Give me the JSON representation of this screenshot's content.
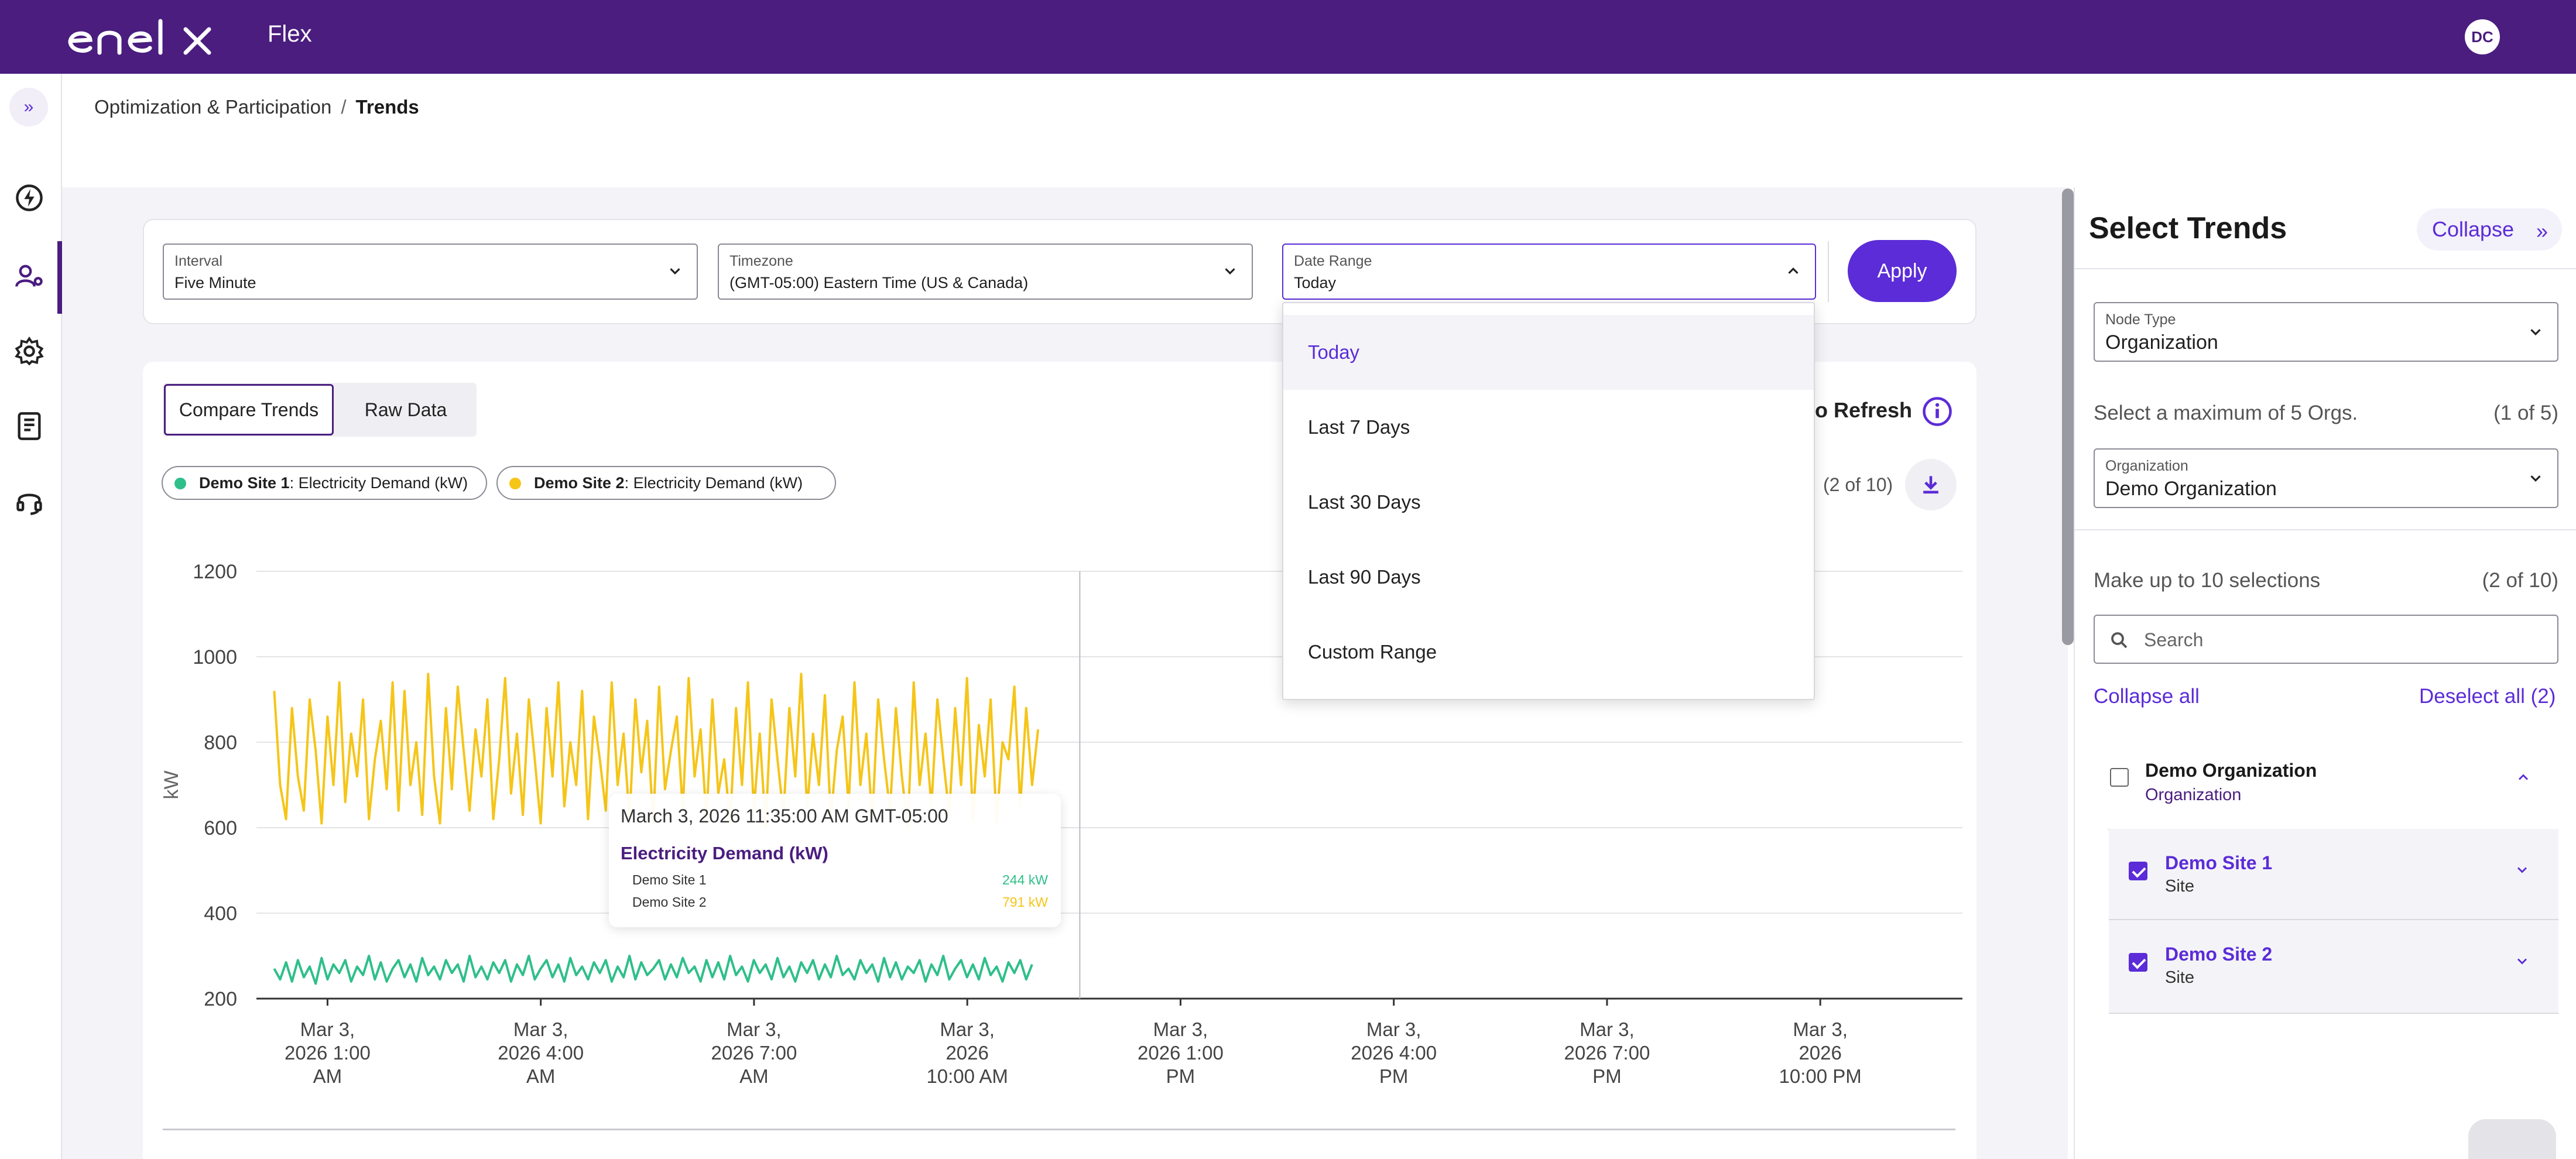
{
  "header": {
    "product": "Flex",
    "avatar_initials": "DC"
  },
  "breadcrumb": {
    "parent": "Optimization & Participation",
    "separator": "/",
    "current": "Trends"
  },
  "filters": {
    "interval": {
      "label": "Interval",
      "value": "Five Minute"
    },
    "timezone": {
      "label": "Timezone",
      "value": "(GMT-05:00) Eastern Time (US & Canada)"
    },
    "date_range": {
      "label": "Date Range",
      "value": "Today"
    },
    "apply_label": "Apply"
  },
  "date_range_options": [
    {
      "label": "Today",
      "selected": true
    },
    {
      "label": "Last 7 Days"
    },
    {
      "label": "Last 30 Days"
    },
    {
      "label": "Last 90 Days"
    },
    {
      "label": "Custom Range"
    }
  ],
  "tabs": [
    {
      "label": "Compare Trends",
      "active": true
    },
    {
      "label": "Raw Data"
    }
  ],
  "legend_chips": [
    {
      "site": "Demo Site 1",
      "metric": ": Electricity Demand (kW)",
      "color": "#2fbf8a"
    },
    {
      "site": "Demo Site 2",
      "metric": ": Electricity Demand (kW)",
      "color": "#f5c518"
    }
  ],
  "auto_refresh_label": "o Refresh",
  "selection_count": "(2 of 10)",
  "tooltip": {
    "time": "March 3, 2026 11:35:00 AM GMT-05:00",
    "title": "Electricity Demand (kW)",
    "rows": [
      {
        "name": "Demo Site 1",
        "value": "244 kW",
        "color": "#2fbf8a"
      },
      {
        "name": "Demo Site 2",
        "value": "791 kW",
        "color": "#f5c518"
      }
    ]
  },
  "chart_data": {
    "type": "line",
    "ylabel": "kW",
    "ylim": [
      200,
      1200
    ],
    "yticks": [
      200,
      400,
      600,
      800,
      1000,
      1200
    ],
    "x_tick_labels": [
      [
        "Mar 3,",
        "2026 1:00",
        "AM"
      ],
      [
        "Mar 3,",
        "2026 4:00",
        "AM"
      ],
      [
        "Mar 3,",
        "2026 7:00",
        "AM"
      ],
      [
        "Mar 3,",
        "2026",
        "10:00 AM"
      ],
      [
        "Mar 3,",
        "2026 1:00",
        "PM"
      ],
      [
        "Mar 3,",
        "2026 4:00",
        "PM"
      ],
      [
        "Mar 3,",
        "2026 7:00",
        "PM"
      ],
      [
        "Mar 3,",
        "2026",
        "10:00 PM"
      ]
    ],
    "x_domain_hours": [
      0,
      24
    ],
    "x_tick_hours": [
      1,
      4,
      7,
      10,
      13,
      16,
      19,
      22
    ],
    "hover_hour": 11.583,
    "grid": true,
    "series": [
      {
        "name": "Demo Site 2",
        "color": "#f5c518",
        "start_hour": 0.25,
        "step_hours": 0.0833,
        "values": [
          920,
          700,
          620,
          880,
          720,
          640,
          900,
          780,
          610,
          860,
          700,
          940,
          660,
          820,
          720,
          900,
          620,
          760,
          850,
          690,
          940,
          640,
          920,
          700,
          800,
          630,
          960,
          720,
          610,
          880,
          690,
          930,
          780,
          640,
          830,
          720,
          900,
          620,
          760,
          950,
          680,
          820,
          630,
          900,
          760,
          610,
          880,
          720,
          940,
          650,
          800,
          700,
          920,
          620,
          860,
          760,
          640,
          940,
          700,
          820,
          620,
          900,
          730,
          850,
          610,
          930,
          690,
          780,
          860,
          640,
          950,
          720,
          830,
          620,
          900,
          680,
          760,
          610,
          880,
          700,
          940,
          640,
          820,
          600,
          900,
          760,
          630,
          880,
          720,
          960,
          640,
          820,
          700,
          910,
          620,
          780,
          860,
          650,
          940,
          700,
          820,
          620,
          900,
          760,
          640,
          880,
          720,
          600,
          940,
          700,
          820,
          650,
          900,
          760,
          630,
          880,
          700,
          950,
          620,
          840,
          720,
          900,
          610,
          800,
          760,
          930,
          650,
          880,
          700,
          830
        ]
      },
      {
        "name": "Demo Site 1",
        "color": "#2fbf8a",
        "start_hour": 0.25,
        "step_hours": 0.0833,
        "values": [
          270,
          245,
          285,
          240,
          290,
          250,
          275,
          235,
          295,
          245,
          280,
          260,
          290,
          240,
          275,
          255,
          300,
          245,
          285,
          240,
          270,
          290,
          250,
          280,
          240,
          295,
          255,
          275,
          245,
          290,
          260,
          280,
          240,
          300,
          250,
          275,
          245,
          285,
          260,
          290,
          240,
          280,
          255,
          300,
          245,
          270,
          290,
          250,
          280,
          240,
          295,
          255,
          275,
          245,
          285,
          260,
          290,
          240,
          275,
          250,
          300,
          245,
          285,
          255,
          270,
          290,
          245,
          280,
          250,
          295,
          260,
          275,
          240,
          290,
          250,
          285,
          245,
          300,
          255,
          275,
          240,
          290,
          260,
          280,
          245,
          295,
          250,
          275,
          240,
          285,
          260,
          290,
          245,
          280,
          250,
          300,
          255,
          270,
          245,
          290,
          260,
          280,
          240,
          295,
          250,
          285,
          245,
          275,
          260,
          290,
          240,
          280,
          255,
          300,
          245,
          270,
          290,
          250,
          280,
          245,
          295,
          255,
          275,
          240,
          285,
          260,
          290,
          245,
          280
        ]
      }
    ]
  },
  "right_panel": {
    "title": "Select Trends",
    "collapse_label": "Collapse",
    "node_type": {
      "label": "Node Type",
      "value": "Organization"
    },
    "max_orgs_text": "Select a maximum of 5 Orgs.",
    "max_orgs_count": "(1 of 5)",
    "organization": {
      "label": "Organization",
      "value": "Demo Organization"
    },
    "selections_text": "Make up to 10 selections",
    "selections_count": "(2 of 10)",
    "search_placeholder": "Search",
    "collapse_all_label": "Collapse all",
    "deselect_all_label": "Deselect all (2)",
    "tree": {
      "org": {
        "name": "Demo Organization",
        "type": "Organization",
        "checked": false
      },
      "sites": [
        {
          "name": "Demo Site 1",
          "type": "Site",
          "checked": true
        },
        {
          "name": "Demo Site 2",
          "type": "Site",
          "checked": true
        }
      ]
    }
  }
}
